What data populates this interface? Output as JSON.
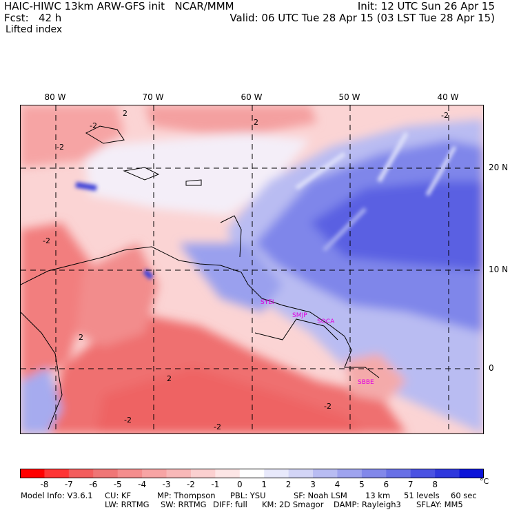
{
  "header": {
    "model": "HAIC-HIWC 13km ARW-GFS init",
    "org": "NCAR/MMM",
    "fcst_label": "Fcst:",
    "fcst_value": "42 h",
    "init": "Init: 12 UTC Sun 26 Apr 15",
    "valid": "Valid: 06 UTC Tue 28 Apr 15 (03 LST Tue 28 Apr 15)",
    "field": "Lifted index"
  },
  "map": {
    "lon_labels": [
      "80 W",
      "70 W",
      "60 W",
      "50 W",
      "40 W"
    ],
    "lat_labels": [
      "20 N",
      "10 N",
      "0"
    ],
    "stations": [
      "SYEI",
      "SMJP",
      "SOCA",
      "SBBE"
    ],
    "contour_labels": [
      "2",
      "-2",
      "2",
      "-2",
      "2",
      "-2",
      "-2",
      "2",
      "-2",
      "-2",
      "-2"
    ],
    "colors": {
      "very_negative": "#ff1a1a",
      "negative": "#f07a7a",
      "light_negative": "#fbc8c8",
      "neutral": "#ffffff",
      "light_positive": "#c8ccf7",
      "positive": "#7f86ea",
      "very_positive": "#4a50e0",
      "station": "#e000e0"
    }
  },
  "colorbar": {
    "labels": [
      "-8",
      "-7",
      "-6",
      "-5",
      "-4",
      "-3",
      "-2",
      "-1",
      "0",
      "1",
      "2",
      "3",
      "4",
      "5",
      "6",
      "7",
      "8"
    ],
    "unit": "°C",
    "colors": [
      "#ff0000",
      "#ff3535",
      "#f35d5d",
      "#ef7676",
      "#f48d8d",
      "#f7a4a4",
      "#f8b8b8",
      "#fbd0d0",
      "#fde6e6",
      "#ffffff",
      "#e8e9fb",
      "#d3d5f6",
      "#b8bcf2",
      "#9ea3ee",
      "#8288ea",
      "#6870e6",
      "#4a52e2",
      "#2f38dd",
      "#0c14d8"
    ]
  },
  "model_info": {
    "line1": [
      "Model Info: V3.6.1",
      "CU: KF",
      "MP: Thompson",
      "PBL: YSU",
      "SF: Noah LSM",
      "13 km",
      "51 levels",
      "60 sec"
    ],
    "line2": [
      "LW: RRTMG",
      "SW: RRTMG",
      "DIFF: full",
      "KM: 2D Smagor",
      "DAMP: Rayleigh3",
      "SFLAY: MM5"
    ]
  }
}
